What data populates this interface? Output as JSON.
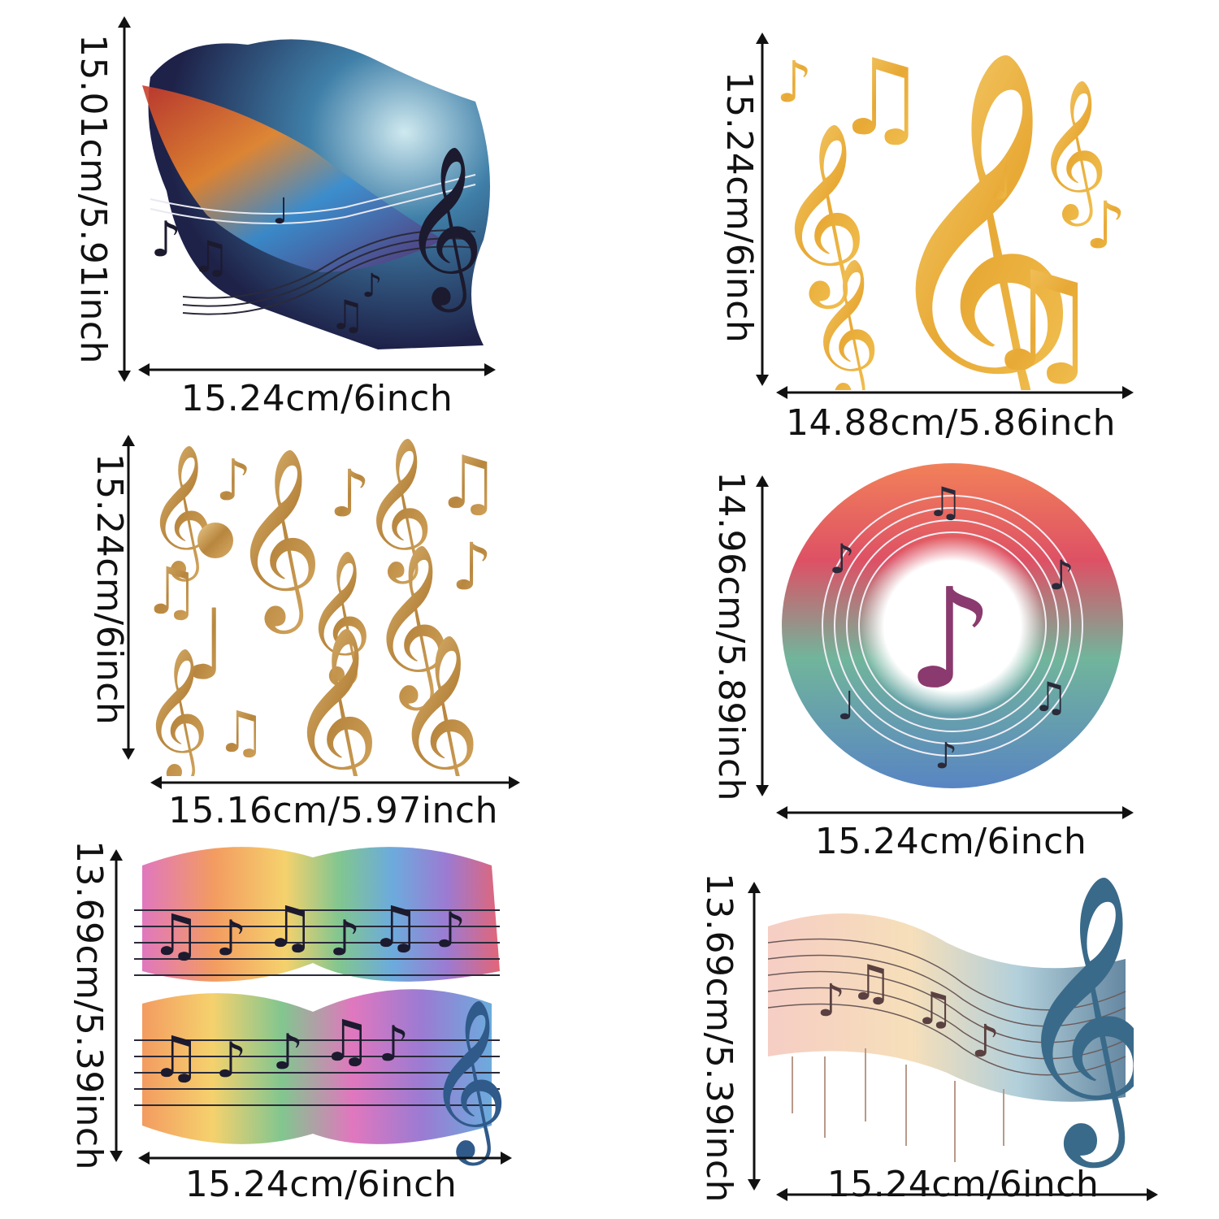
{
  "colors": {
    "gold": "#e3a93a",
    "gold_light": "#f6d27a",
    "ink": "#1c1a2e",
    "rainbow": [
      "#d8324a",
      "#ef7a2c",
      "#f2c23c",
      "#58b36a",
      "#3b8fd1",
      "#7a4fc4",
      "#d64aa8"
    ]
  },
  "panels": [
    {
      "id": "top-left",
      "icon": "rainbow-feather-staff-icon",
      "width_label": "15.24cm/6inch",
      "height_label": "15.01cm/5.91inch"
    },
    {
      "id": "top-right",
      "icon": "golden-notes-icon",
      "width_label": "14.88cm/5.86inch",
      "height_label": "15.24cm/6inch"
    },
    {
      "id": "middle-left",
      "icon": "bronze-notes-icon",
      "width_label": "15.16cm/5.97inch",
      "height_label": "15.24cm/6inch"
    },
    {
      "id": "middle-right",
      "icon": "circular-watercolor-note-icon",
      "width_label": "15.24cm/6inch",
      "height_label": "14.96cm/5.89inch"
    },
    {
      "id": "bottom-left",
      "icon": "rainbow-double-staff-icon",
      "width_label": "15.24cm/6inch",
      "height_label": "13.69cm/5.39inch"
    },
    {
      "id": "bottom-right",
      "icon": "pastel-wave-staff-icon",
      "width_label": "15.24cm/6inch",
      "height_label": "13.69cm/5.39inch"
    }
  ]
}
